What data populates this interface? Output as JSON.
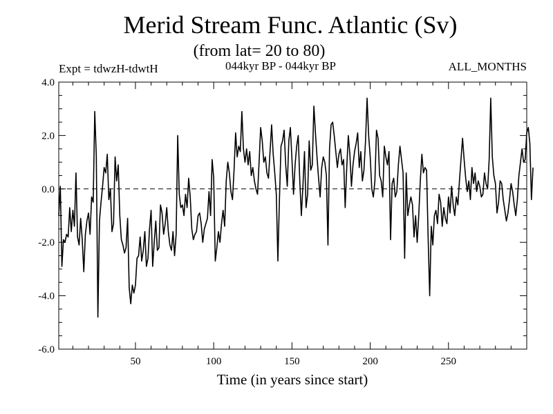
{
  "chart_data": {
    "type": "line",
    "title": "Merid Stream Func. Atlantic (Sv)",
    "subtitle": "(from lat= 20 to 80)",
    "experiment": "Expt = tdwzH-tdwtH",
    "period": "044kyr BP - 044kyr BP",
    "months": "ALL_MONTHS",
    "xlabel": "Time (in years since start)",
    "ylabel": "",
    "xlim": [
      1,
      300
    ],
    "ylim": [
      -6,
      4
    ],
    "x_ticks": [
      50,
      100,
      150,
      200,
      250
    ],
    "x_tick_labels": [
      "50",
      "100",
      "150",
      "200",
      "250"
    ],
    "y_ticks": [
      4,
      2,
      0,
      -2,
      -4,
      -6
    ],
    "y_tick_labels": [
      "4.0",
      "2.0",
      "0.0",
      "-2.0",
      "-4.0",
      "-6.0"
    ],
    "reference_line": 0,
    "grid": false,
    "line_color": "#000000",
    "series": [
      {
        "x_start": 1,
        "x_step": 1,
        "values": [
          -1.0,
          0.1,
          -2.9,
          -1.9,
          -2.0,
          -1.7,
          -1.8,
          -0.7,
          -1.6,
          -0.8,
          -1.4,
          0.6,
          -1.8,
          -2.1,
          -1.1,
          -1.9,
          -3.1,
          -1.7,
          -1.2,
          -0.9,
          -1.7,
          -0.3,
          -0.5,
          2.9,
          1.2,
          -4.8,
          -1.2,
          -0.5,
          0.1,
          0.8,
          0.6,
          1.3,
          -0.4,
          0.0,
          -1.6,
          -1.3,
          1.2,
          0.3,
          0.9,
          -1.0,
          -1.9,
          -2.1,
          -2.4,
          -2.2,
          -1.1,
          -3.7,
          -4.3,
          -3.6,
          -3.9,
          -3.6,
          -2.6,
          -2.5,
          -1.8,
          -2.7,
          -2.3,
          -1.6,
          -2.9,
          -2.6,
          -1.5,
          -0.8,
          -2.9,
          -2.0,
          -1.2,
          -2.3,
          -2.2,
          -0.6,
          -0.9,
          -1.7,
          -1.3,
          -0.7,
          -1.6,
          -2.1,
          -2.3,
          -1.6,
          -2.5,
          -1.7,
          2.0,
          -0.2,
          -0.7,
          -0.6,
          -1.0,
          -0.2,
          -0.7,
          0.4,
          -0.3,
          -1.5,
          -1.9,
          -1.7,
          -1.6,
          -1.0,
          -0.9,
          -1.3,
          -2.0,
          -1.5,
          -1.3,
          -1.1,
          -0.1,
          -1.0,
          1.1,
          0.4,
          -2.7,
          -2.2,
          -1.6,
          -2.0,
          -1.3,
          -0.8,
          -1.4,
          0.3,
          1.0,
          0.6,
          -0.1,
          -0.4,
          0.7,
          2.1,
          1.2,
          1.6,
          1.4,
          2.9,
          1.5,
          1.0,
          1.5,
          0.9,
          1.4,
          0.5,
          0.8,
          0.3,
          0.0,
          -0.2,
          1.0,
          2.3,
          1.8,
          1.0,
          1.2,
          0.6,
          0.4,
          1.4,
          2.4,
          1.3,
          0.6,
          -0.2,
          -2.7,
          -0.4,
          1.6,
          1.8,
          2.2,
          0.9,
          0.1,
          1.8,
          2.3,
          1.1,
          -0.2,
          0.9,
          1.6,
          2.0,
          0.3,
          -1.0,
          0.1,
          1.4,
          -0.7,
          -0.2,
          1.8,
          0.7,
          0.9,
          3.1,
          2.1,
          1.2,
          0.4,
          -0.3,
          0.8,
          1.2,
          1.0,
          0.5,
          -2.1,
          1.5,
          2.4,
          2.5,
          2.0,
          1.4,
          0.8,
          1.3,
          1.5,
          0.9,
          1.1,
          -0.7,
          0.8,
          2.0,
          1.3,
          0.1,
          0.9,
          1.4,
          1.7,
          2.1,
          0.8,
          1.4,
          0.3,
          0.7,
          1.8,
          3.4,
          2.0,
          1.2,
          0.0,
          -0.3,
          0.3,
          2.2,
          1.9,
          0.5,
          0.3,
          -0.3,
          1.6,
          1.2,
          0.9,
          1.4,
          -1.9,
          0.2,
          0.4,
          -0.3,
          -0.1,
          0.9,
          1.6,
          1.1,
          0.6,
          -2.6,
          0.6,
          -1.0,
          -0.6,
          -0.3,
          -0.6,
          -1.8,
          -1.0,
          -2.0,
          -1.0,
          0.3,
          1.3,
          0.6,
          0.8,
          0.7,
          -1.8,
          -4.0,
          -1.4,
          -2.1,
          -1.0,
          -0.8,
          -1.3,
          -0.2,
          -0.5,
          -1.4,
          -0.7,
          -1.1,
          -1.3,
          -0.3,
          -0.9,
          0.1,
          -0.6,
          -1.0,
          -0.3,
          -0.6,
          0.3,
          1.1,
          1.9,
          1.1,
          0.4,
          -0.1,
          0.3,
          -0.4,
          0.8,
          0.2,
          0.6,
          -0.1,
          0.3,
          0.1,
          -0.3,
          -0.2,
          0.6,
          0.2,
          0.0,
          1.1,
          3.4,
          1.2,
          0.5,
          0.2,
          -0.9,
          -0.5,
          0.3,
          0.2,
          -0.4,
          -0.8,
          -1.2,
          -0.9,
          -0.4,
          0.2,
          -0.1,
          -0.6,
          -1.0,
          -0.4,
          0.5,
          1.0,
          1.5,
          1.0,
          1.1,
          2.1,
          2.3,
          1.7,
          -0.4,
          0.8
        ]
      }
    ]
  }
}
